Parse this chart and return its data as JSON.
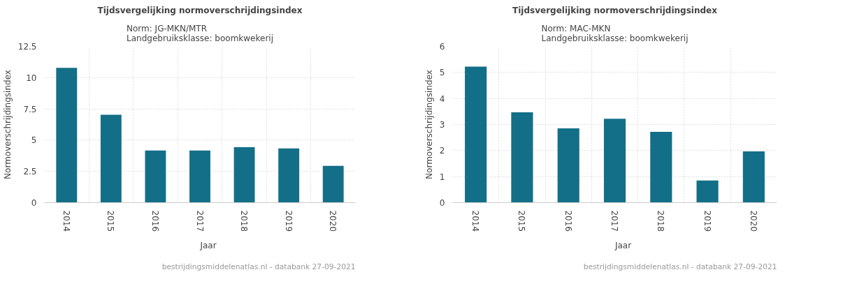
{
  "chart_data": [
    {
      "type": "bar",
      "title": "Tijdsvergelijking normoverschrijdingsindex",
      "subtitle": "Norm: JG-MKN/MTR\nLandgebruiksklasse: boomkwekerij",
      "ylabel": "Normoverschrijdingsindex",
      "categories": [
        "2014",
        "2015",
        "2016",
        "2017",
        "2018",
        "2019",
        "2020"
      ],
      "series": [
        {
          "name": "Jaar",
          "color": "#136f87",
          "values": [
            10.78,
            7.03,
            4.17,
            4.17,
            4.44,
            4.34,
            2.95
          ]
        }
      ],
      "ylim": [
        0,
        12.5
      ],
      "yticks": [
        0,
        2.5,
        5,
        7.5,
        10,
        12.5
      ],
      "grid": true,
      "legend": "bottom",
      "annotations": [
        "bestrijdingsmiddelenatlas.nl - databank 27-09-2021"
      ]
    },
    {
      "type": "bar",
      "title": "Tijdsvergelijking normoverschrijdingsindex",
      "subtitle": "Norm: MAC-MKN\nLandgebruiksklasse: boomkwekerij",
      "ylabel": "Normoverschrijdingsindex",
      "categories": [
        "2014",
        "2015",
        "2016",
        "2017",
        "2018",
        "2019",
        "2020"
      ],
      "series": [
        {
          "name": "Jaar",
          "color": "#136f87",
          "values": [
            5.22,
            3.47,
            2.85,
            3.22,
            2.72,
            0.85,
            1.97
          ]
        }
      ],
      "ylim": [
        0,
        6
      ],
      "yticks": [
        0,
        1,
        2,
        3,
        4,
        5,
        6
      ],
      "grid": true,
      "legend": "bottom",
      "annotations": [
        "bestrijdingsmiddelenatlas.nl - databank 27-09-2021"
      ]
    }
  ]
}
